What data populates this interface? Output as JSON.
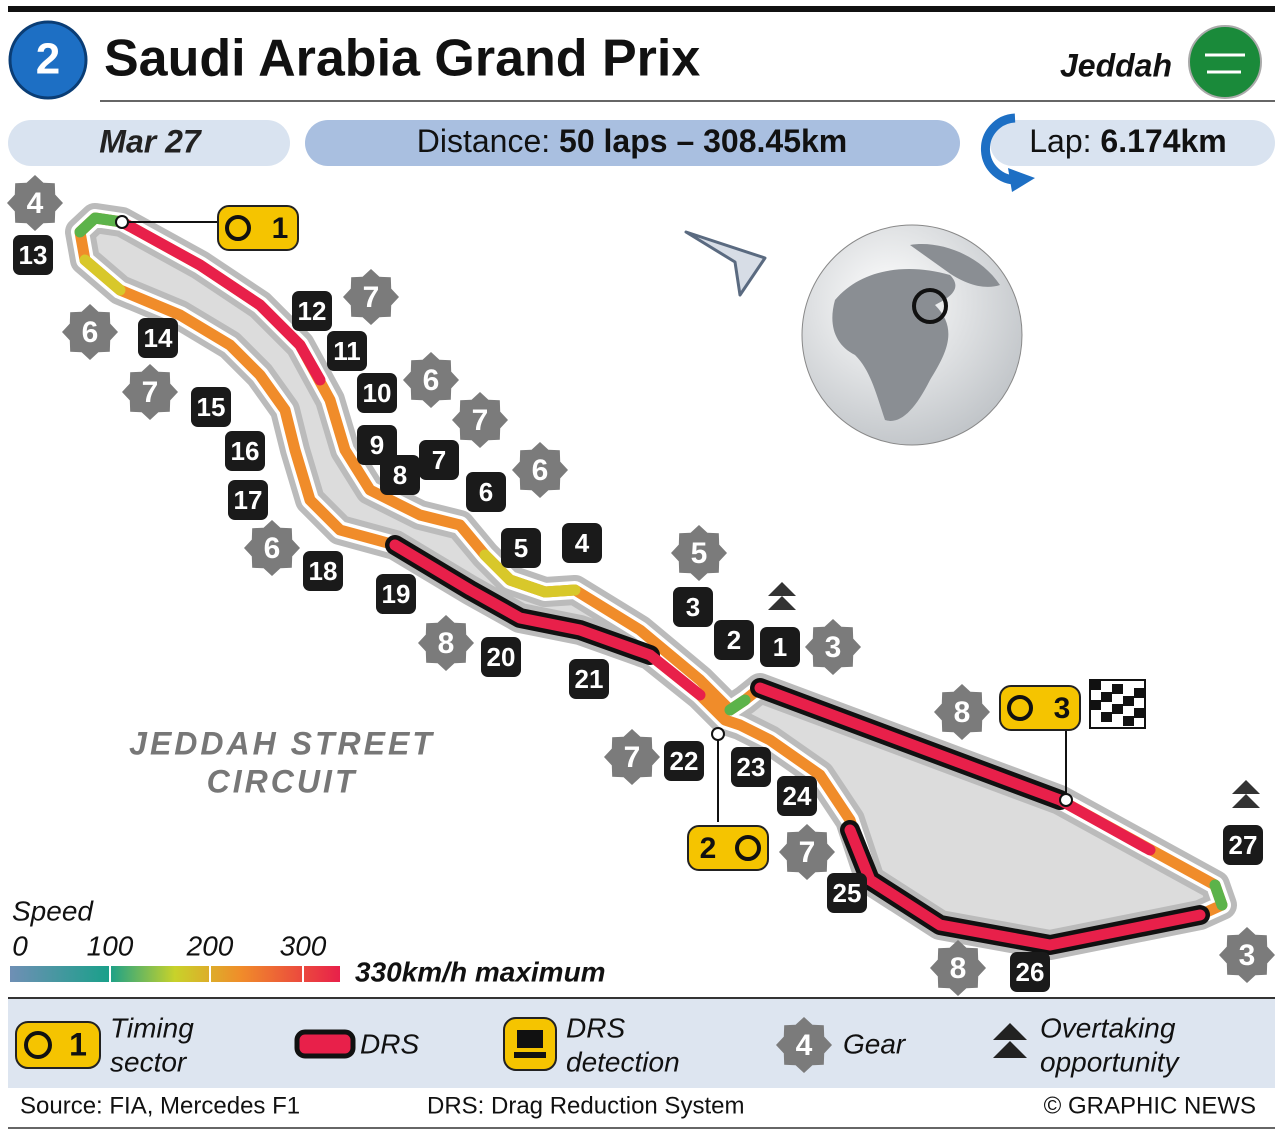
{
  "header": {
    "round": "2",
    "title": "Saudi Arabia Grand Prix",
    "city": "Jeddah"
  },
  "info": {
    "date": "Mar 27",
    "distance_label": "Distance:",
    "distance_value": "50 laps – 308.45km",
    "lap_label": "Lap:",
    "lap_value": "6.174km"
  },
  "circuit_name": [
    "JEDDAH STREET",
    "CIRCUIT"
  ],
  "turns": [
    "1",
    "2",
    "3",
    "4",
    "5",
    "6",
    "7",
    "8",
    "9",
    "10",
    "11",
    "12",
    "13",
    "14",
    "15",
    "16",
    "17",
    "18",
    "19",
    "20",
    "21",
    "22",
    "23",
    "24",
    "25",
    "26",
    "27"
  ],
  "gears": [
    "4",
    "6",
    "7",
    "7",
    "6",
    "7",
    "6",
    "6",
    "8",
    "5",
    "3",
    "7",
    "7",
    "8",
    "8",
    "3"
  ],
  "timing_sectors": [
    "1",
    "2",
    "3"
  ],
  "speed_scale": {
    "title": "Speed",
    "ticks": [
      0,
      100,
      200,
      300
    ],
    "max_label": "330km/h maximum"
  },
  "legend": {
    "timing_sector_icon": "1",
    "timing_sector": [
      "Timing",
      "sector"
    ],
    "drs": "DRS",
    "drs_detection": [
      "DRS",
      "detection"
    ],
    "gear_icon": "4",
    "gear": "Gear",
    "overtaking": [
      "Overtaking",
      "opportunity"
    ]
  },
  "footer": {
    "source": "Source: FIA, Mercedes F1",
    "drs_note": "DRS: Drag Reduction System",
    "credit": "© GRAPHIC NEWS"
  }
}
